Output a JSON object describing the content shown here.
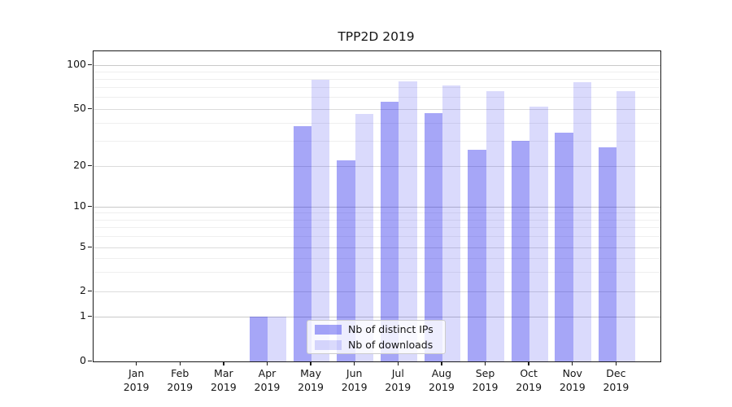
{
  "chart_data": {
    "type": "bar",
    "title": "TPP2D 2019",
    "year_label": "2019",
    "categories": [
      "Jan",
      "Feb",
      "Mar",
      "Apr",
      "May",
      "Jun",
      "Jul",
      "Aug",
      "Sep",
      "Oct",
      "Nov",
      "Dec"
    ],
    "series": [
      {
        "name": "Nb of distinct IPs",
        "color": "rgba(8,8,232,0.36)",
        "values": [
          0,
          0,
          0,
          1,
          38,
          22,
          56,
          47,
          26,
          30,
          34,
          27
        ]
      },
      {
        "name": "Nb of downloads",
        "color": "rgba(8,8,232,0.15)",
        "values": [
          0,
          0,
          0,
          1,
          79,
          46,
          77,
          73,
          66,
          52,
          76,
          66
        ]
      }
    ],
    "xlabel": "",
    "ylabel": "",
    "yscale": "log-like (compressed near zero, zero shown at baseline)",
    "yticks": [
      0,
      1,
      2,
      5,
      10,
      20,
      50,
      100
    ],
    "yticks_minor": [
      3,
      4,
      6,
      7,
      8,
      9,
      30,
      40,
      60,
      70,
      80,
      90
    ],
    "ylim": [
      0,
      125
    ],
    "grid": true,
    "legend_position": "lower center",
    "colors": {
      "major_grid": "#c9c9c9",
      "mid_grid": "#dcdcdc",
      "minor_grid": "#efefef",
      "spine": "#1a1a1a",
      "text": "#151515",
      "legend_border": "#cccccc"
    }
  }
}
